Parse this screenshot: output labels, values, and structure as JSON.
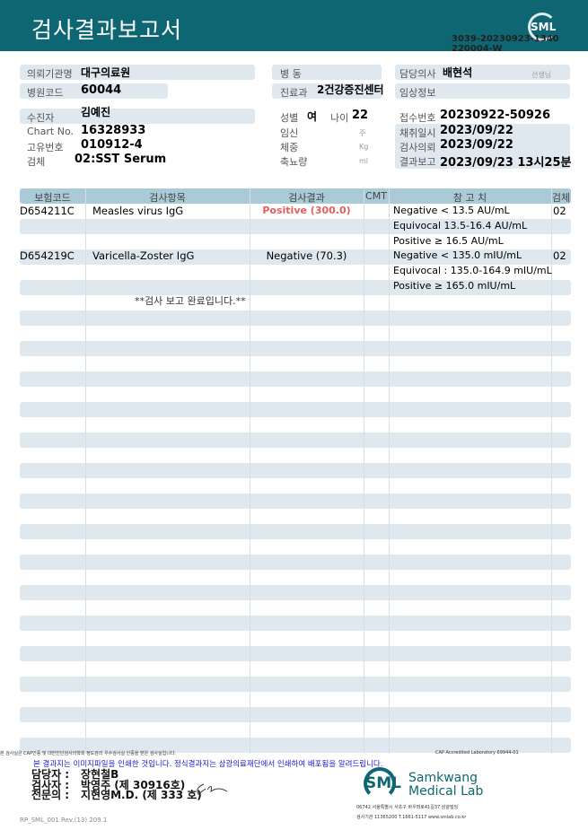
{
  "header": {
    "title": "검사결과보고서",
    "logo": "SML",
    "doc_no_1": "3039-20230923-1340",
    "doc_no_2": "220004-W"
  },
  "info": {
    "institution_label": "의뢰기관명",
    "institution": "대구의료원",
    "hospital_code_label": "병원코드",
    "hospital_code": "60044",
    "ward_label": "병  동",
    "ward": "",
    "dept_label": "진료과",
    "dept": "2건강증진센터",
    "doctor_label": "담당의사",
    "doctor": "배현석",
    "doctor_suffix": "선생님",
    "clinical_label": "임상정보",
    "clinical": "",
    "patient_label": "수진자",
    "patient": "김예진",
    "chart_label": "Chart No.",
    "chart": "16328933",
    "unique_label": "고유번호",
    "unique": "010912-4",
    "specimen_label": "검체",
    "specimen": "02:SST Serum",
    "sex_label": "성별",
    "sex": "여",
    "age_label": "나이",
    "age": "22",
    "pregnancy_label": "임신",
    "pregnancy_unit": "주",
    "weight_label": "체중",
    "weight_unit": "Kg",
    "urine_label": "축뇨량",
    "urine_unit": "ml",
    "receipt_label": "접수번호",
    "receipt": "20230922-50926",
    "collect_label": "채취일시",
    "collect": "2023/09/22",
    "request_label": "검사의뢰",
    "request": "2023/09/22",
    "report_label": "결과보고",
    "report": "2023/09/23 13시25분"
  },
  "table": {
    "headers": [
      "보험코드",
      "검사항목",
      "검사결과",
      "CMT",
      "참 고 치",
      "검체"
    ],
    "rows": [
      {
        "code": "D654211C",
        "item": "Measles virus IgG",
        "result": "Positive (300.0)",
        "ref": "Negative < 13.5 AU/mL",
        "spec": "02"
      },
      {
        "code": "",
        "item": "",
        "result": "",
        "ref": "Equivocal 13.5-16.4 AU/mL",
        "spec": ""
      },
      {
        "code": "",
        "item": "",
        "result": "",
        "ref": "Positive ≥ 16.5 AU/mL",
        "spec": ""
      },
      {
        "code": "D654219C",
        "item": "Varicella-Zoster IgG",
        "result": "Negative (70.3)",
        "ref": "Negative < 135.0 mIU/mL",
        "spec": "02"
      },
      {
        "code": "",
        "item": "",
        "result": "",
        "ref": "Equivocal : 135.0-164.9 mIU/mL",
        "spec": ""
      },
      {
        "code": "",
        "item": "",
        "result": "",
        "ref": "Positive ≥ 165.0 mIU/mL",
        "spec": ""
      }
    ],
    "complete_note": "**검사  보고  완료입니다.**",
    "positive_color": "#e06060"
  },
  "footer": {
    "cap_note": "본 검사실은 CAP인증 및 대한진단검사의학회 정도관리 우수검사실 인증을 받은 검사실입니다.",
    "cap_id": "CAP Accredited Laboratory 69944-01",
    "notice": "본 결과지는 이미지파일을 인쇄한 것입니다. 정식결과지는 삼광의료재단에서 인쇄하여 배포됨을 알려드립니다.",
    "manager_label": "담당자 :",
    "manager": "장현철B",
    "tester_label": "검사자 :",
    "tester": "박영주 (제 30916호)",
    "specialist_label": "전문의 :",
    "specialist": "지현영M.D. (제 333 호)",
    "lab_logo": "SML",
    "lab_name_1": "Samkwang",
    "lab_name_2": "Medical Lab",
    "address": "06742 서울특별시 서초구 바우뫼로41길37 삼광빌딩",
    "contact": "검사기관 11365200 T.1661-5117 www.smlab.co.kr",
    "form_no": "RP_SML_001 Rev.(13) 209.1"
  }
}
